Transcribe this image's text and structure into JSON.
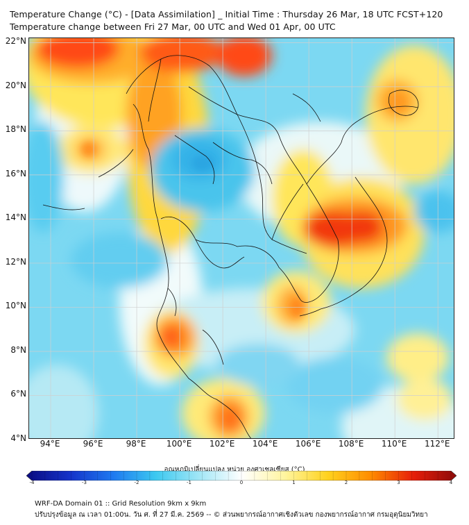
{
  "title_line1": "Temperature Change (°C) - [Data Assimilation] _ Initial Time : Thursday 26 Mar, 18 UTC FCST+120",
  "title_line2": "Temperature change between Fri 27 Mar, 00 UTC and Wed 01 Apr, 00 UTC",
  "map": {
    "lon_range": [
      93.0,
      112.8
    ],
    "lat_range": [
      4.0,
      22.2
    ],
    "lat_labels": [
      "22°N",
      "20°N",
      "18°N",
      "16°N",
      "14°N",
      "12°N",
      "10°N",
      "8°N",
      "6°N",
      "4°N"
    ],
    "lat_values": [
      22,
      20,
      18,
      16,
      14,
      12,
      10,
      8,
      6,
      4
    ],
    "lon_labels": [
      "94°E",
      "96°E",
      "98°E",
      "100°E",
      "102°E",
      "104°E",
      "106°E",
      "108°E",
      "110°E",
      "112°E"
    ],
    "lon_values": [
      94,
      96,
      98,
      100,
      102,
      104,
      106,
      108,
      110,
      112
    ]
  },
  "colorbar": {
    "title": "อุณหภูมิเปลี่ยนแปลง หน่วย องศาเซลเซียส (°C)",
    "min": -4,
    "max": 4,
    "tick_labels": [
      "-4",
      "-3",
      "-2",
      "-1",
      "0",
      "1",
      "2",
      "3",
      "4"
    ],
    "tick_values": [
      -4,
      -3,
      -2,
      -1,
      0,
      1,
      2,
      3,
      4
    ],
    "colors": [
      "#0a0a80",
      "#1432c8",
      "#1e78f0",
      "#3cc8f0",
      "#a0e6f6",
      "#ffffff",
      "#fff5a0",
      "#ffd21e",
      "#ff8c00",
      "#e61e0a",
      "#8c0a0a"
    ]
  },
  "footer_line1": "WRF-DA Domain 01 :: Grid Resolution 9km x 9km",
  "footer_line2": "ปรับปรุงข้อมูล ณ เวลา 01:00น. วัน ศ. ที่ 27 มี.ค. 2569 -- © ส่วนพยากรณ์อากาศเชิงตัวเลข กองพยากรณ์อากาศ กรมอุตุนิยมวิทยา"
}
